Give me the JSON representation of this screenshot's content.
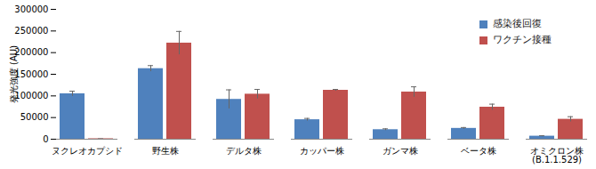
{
  "chart_data": {
    "type": "bar",
    "y_label": "発光強度 (AU)",
    "categories": [
      "ヌクレオカプシド",
      "野生株",
      "デルタ株",
      "カッパー株",
      "ガンマ株",
      "ベータ株",
      "オミクロン株\n(B.1.1.529)"
    ],
    "series": [
      {
        "name": "感染後回復",
        "color": "#4f81bd",
        "values": [
          105000,
          163000,
          92000,
          45000,
          22000,
          25000,
          7000
        ],
        "errors": [
          6000,
          7000,
          22000,
          3000,
          2000,
          2000,
          1000
        ]
      },
      {
        "name": "ワクチン接種",
        "color": "#c0504d",
        "values": [
          1000,
          222000,
          104000,
          113000,
          109000,
          74000,
          46000
        ],
        "errors": [
          0,
          27000,
          11000,
          2000,
          12000,
          7000,
          6000
        ]
      }
    ],
    "ylim": [
      0,
      300000
    ],
    "yticks": [
      0,
      50000,
      100000,
      150000,
      200000,
      250000,
      300000
    ],
    "grid": false,
    "legend": "upper right"
  }
}
